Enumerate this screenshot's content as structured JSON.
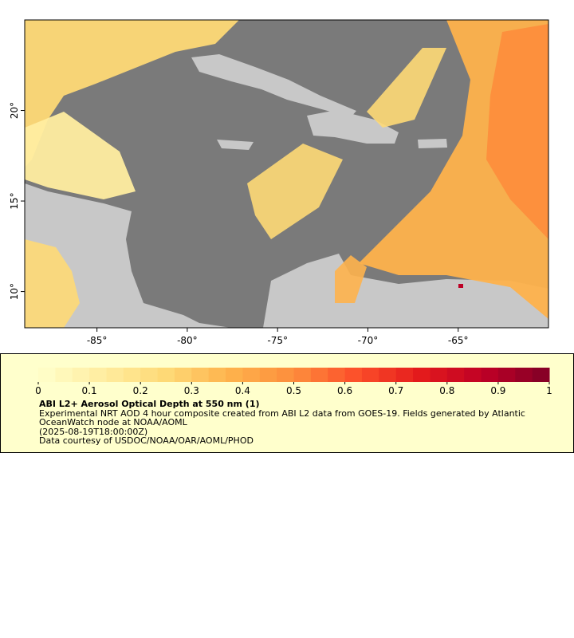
{
  "map": {
    "xlim": [
      -89,
      -60
    ],
    "ylim": [
      8,
      25
    ],
    "xticks": [
      {
        "value": -85,
        "label": "-85°"
      },
      {
        "value": -80,
        "label": "-80°"
      },
      {
        "value": -75,
        "label": "-75°"
      },
      {
        "value": -70,
        "label": "-70°"
      },
      {
        "value": -65,
        "label": "-65°"
      }
    ],
    "yticks": [
      {
        "value": 10,
        "label": "10°"
      },
      {
        "value": 15,
        "label": "15°"
      },
      {
        "value": 20,
        "label": "20°"
      }
    ]
  },
  "colorbar": {
    "lim": [
      0,
      1
    ],
    "ticks": [
      0,
      0.1,
      0.2,
      0.3,
      0.4,
      0.5,
      0.6,
      0.7,
      0.8,
      0.9,
      1
    ],
    "colormap": [
      "#ffffcc",
      "#ffeda0",
      "#fed976",
      "#feb24c",
      "#fd8d3c",
      "#fc4e2a",
      "#e31a1c",
      "#bd0026",
      "#800026"
    ]
  },
  "legend": {
    "title": "ABI L2+ Aerosol Optical Depth at 550 nm (1)",
    "description": "Experimental NRT AOD 4 hour composite created from ABI L2 data from GOES-19. Fields generated by Atlantic OceanWatch node at NOAA/AOML",
    "time": "(2025-08-19T18:00:00Z)",
    "credit": "Data courtesy of USDOC/NOAA/OAR/AOML/PHOD"
  }
}
